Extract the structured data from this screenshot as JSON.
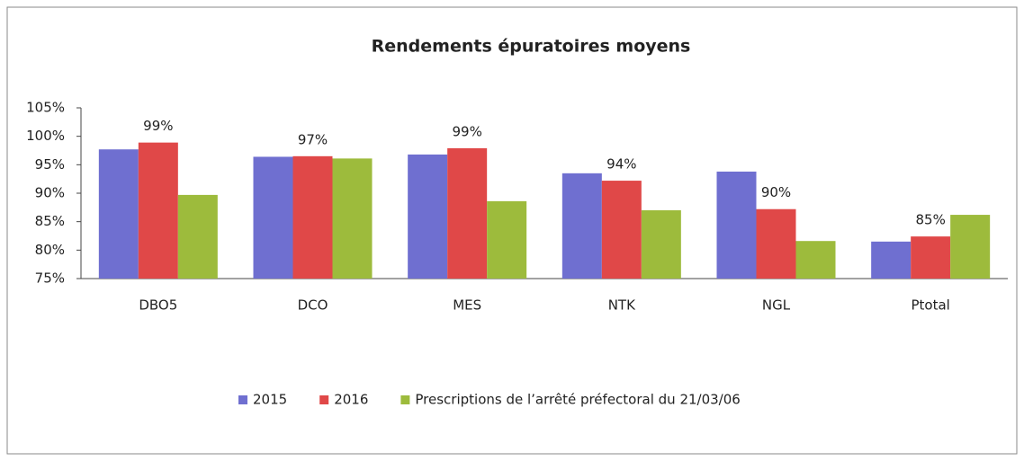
{
  "chart_data": {
    "type": "bar",
    "title": "Rendements épuratoires moyens",
    "categories": [
      "DBO5",
      "DCO",
      "MES",
      "NTK",
      "NGL",
      "Ptotal"
    ],
    "series": [
      {
        "name": "2015",
        "color": "#6f6fd0",
        "values": [
          97.7,
          96.4,
          96.8,
          93.5,
          93.8,
          81.5
        ]
      },
      {
        "name": "2016",
        "color": "#e04848",
        "values": [
          98.9,
          96.5,
          97.9,
          92.2,
          87.2,
          82.4
        ]
      },
      {
        "name": "Prescriptions de l’arrêté préfectoral du 21/03/06",
        "color": "#9dbb3c",
        "values": [
          89.7,
          96.1,
          88.6,
          87.0,
          81.6,
          86.2
        ]
      }
    ],
    "annotations": [
      "99%",
      "97%",
      "99%",
      "94%",
      "90%",
      "85%"
    ],
    "ylim": [
      75,
      105
    ],
    "yticks": [
      {
        "value": 75,
        "label": "75%"
      },
      {
        "value": 80,
        "label": "80%"
      },
      {
        "value": 85,
        "label": "85%"
      },
      {
        "value": 90,
        "label": "90%"
      },
      {
        "value": 95,
        "label": "95%"
      },
      {
        "value": 100,
        "label": "100%"
      },
      {
        "value": 105,
        "label": "105%"
      }
    ],
    "grid": false,
    "legend": "bottom"
  }
}
